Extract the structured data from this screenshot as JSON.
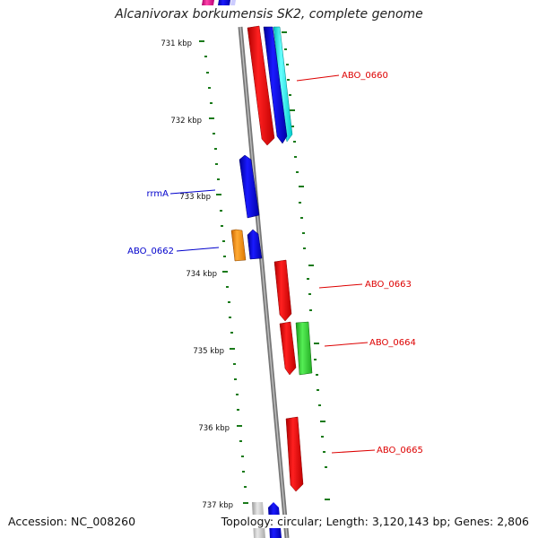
{
  "title": "Alcanivorax borkumensis SK2, complete genome",
  "footer": {
    "accession": "Accession: NC_008260",
    "topology": "Topology: circular; Length: 3,120,143 bp; Genes: 2,806"
  },
  "ticks": [
    {
      "label": "731 kbp"
    },
    {
      "label": "732 kbp"
    },
    {
      "label": "733 kbp"
    },
    {
      "label": "734 kbp"
    },
    {
      "label": "735 kbp"
    },
    {
      "label": "736 kbp"
    },
    {
      "label": "737 kbp"
    }
  ],
  "gene_labels": {
    "abo_0660": "ABO_0660",
    "rrma": "rrmA",
    "abo_0662": "ABO_0662",
    "abo_0663": "ABO_0663",
    "abo_0664": "ABO_0664",
    "abo_0665": "ABO_0665"
  },
  "colors": {
    "backbone": "#888888",
    "tick_dots": "#1a7a1a",
    "forward_label": "#dd0000",
    "reverse_label": "#0000cc",
    "red_gene": "#ff0000",
    "blue_gene": "#0000ee",
    "cyan_gene": "#00ffff",
    "green_gene": "#33dd33",
    "orange_gene": "#ff8800",
    "magenta_gene": "#ee1188",
    "gray_gene": "#cccccc"
  }
}
